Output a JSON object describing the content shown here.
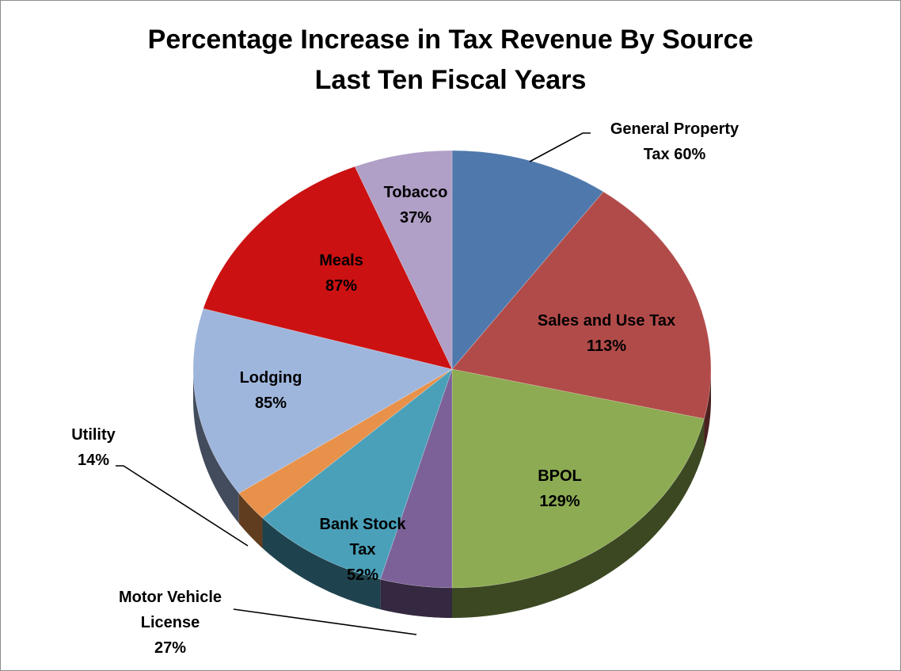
{
  "chart_data": {
    "type": "pie",
    "style": "3d",
    "title": "Percentage Increase in Tax Revenue By Source",
    "subtitle": "Last Ten Fiscal Years",
    "legend": "none",
    "slices": [
      {
        "name": "General Property Tax",
        "label_lines": [
          "General Property",
          "Tax 60%"
        ],
        "value": 60,
        "color": "#4f79ad",
        "label_outside": true
      },
      {
        "name": "Sales and Use Tax",
        "label_lines": [
          "Sales and Use Tax",
          "113%"
        ],
        "value": 113,
        "color": "#b14b49",
        "label_outside": false
      },
      {
        "name": "BPOL",
        "label_lines": [
          "BPOL",
          "129%"
        ],
        "value": 129,
        "color": "#8dab52",
        "label_outside": false
      },
      {
        "name": "Motor Vehicle License",
        "label_lines": [
          "Motor Vehicle",
          "License",
          "27%"
        ],
        "value": 27,
        "color": "#7c6198",
        "label_outside": true
      },
      {
        "name": "Bank Stock Tax",
        "label_lines": [
          "Bank Stock",
          "Tax",
          "52%"
        ],
        "value": 52,
        "color": "#4aa0b9",
        "label_outside": false
      },
      {
        "name": "Utility",
        "label_lines": [
          "Utility",
          "14%"
        ],
        "value": 14,
        "color": "#e8914a",
        "label_outside": true
      },
      {
        "name": "Lodging",
        "label_lines": [
          "Lodging",
          "85%"
        ],
        "value": 85,
        "color": "#9fb6dc",
        "label_outside": false
      },
      {
        "name": "Meals",
        "label_lines": [
          "Meals",
          "87%"
        ],
        "value": 87,
        "color": "#cb1111",
        "label_outside": false
      },
      {
        "name": "Tobacco",
        "label_lines": [
          "Tobacco",
          "37%"
        ],
        "value": 37,
        "color": "#b09fc6",
        "label_outside": false
      }
    ]
  }
}
